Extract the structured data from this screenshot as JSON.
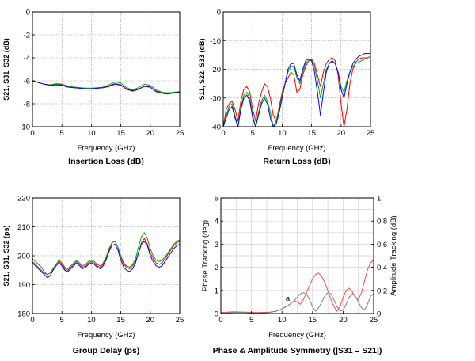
{
  "chart_data": [
    {
      "type": "line",
      "title": "Insertion Loss (dB)",
      "xlabel": "Frequency (GHz)",
      "ylabel": "S21, S31, S32 (dB)",
      "xlim": [
        0,
        25
      ],
      "ylim": [
        -10,
        0
      ],
      "xticks": [
        0,
        5,
        10,
        15,
        20,
        25
      ],
      "yticks": [
        0,
        -2,
        -4,
        -6,
        -8,
        -10
      ],
      "grid": true,
      "series": [
        {
          "color": "#ff0000",
          "x": [
            0,
            1,
            2,
            3,
            4,
            5,
            6,
            7,
            8,
            9,
            10,
            11,
            12,
            13,
            14,
            15,
            16,
            17,
            18,
            19,
            20,
            21,
            22,
            23,
            24,
            25
          ],
          "y": [
            -6.0,
            -6.15,
            -6.3,
            -6.35,
            -6.25,
            -6.3,
            -6.45,
            -6.55,
            -6.6,
            -6.65,
            -6.65,
            -6.65,
            -6.6,
            -6.5,
            -6.3,
            -6.4,
            -6.7,
            -6.85,
            -6.7,
            -6.5,
            -6.55,
            -6.9,
            -7.05,
            -7.1,
            -7.0,
            -6.95
          ]
        },
        {
          "color": "#00aa00",
          "x": [
            0,
            1,
            2,
            3,
            4,
            5,
            6,
            7,
            8,
            9,
            10,
            11,
            12,
            13,
            14,
            15,
            16,
            17,
            18,
            19,
            20,
            21,
            22,
            23,
            24,
            25
          ],
          "y": [
            -6.0,
            -6.15,
            -6.3,
            -6.35,
            -6.3,
            -6.35,
            -6.5,
            -6.55,
            -6.6,
            -6.65,
            -6.65,
            -6.6,
            -6.55,
            -6.35,
            -6.1,
            -6.2,
            -6.6,
            -6.8,
            -6.6,
            -6.3,
            -6.4,
            -6.8,
            -7.0,
            -7.05,
            -7.0,
            -6.95
          ]
        },
        {
          "color": "#0000ff",
          "x": [
            0,
            1,
            2,
            3,
            4,
            5,
            6,
            7,
            8,
            9,
            10,
            11,
            12,
            13,
            14,
            15,
            16,
            17,
            18,
            19,
            20,
            21,
            22,
            23,
            24,
            25
          ],
          "y": [
            -6.0,
            -6.15,
            -6.3,
            -6.4,
            -6.35,
            -6.4,
            -6.55,
            -6.6,
            -6.65,
            -6.7,
            -6.7,
            -6.65,
            -6.6,
            -6.45,
            -6.25,
            -6.35,
            -6.75,
            -6.9,
            -6.75,
            -6.45,
            -6.55,
            -6.95,
            -7.1,
            -7.15,
            -7.05,
            -7.0
          ]
        }
      ]
    },
    {
      "type": "line",
      "title": "Return Loss (dB)",
      "xlabel": "Frequency (GHz)",
      "ylabel": "S11, S22, S33 (dB)",
      "xlim": [
        0,
        25
      ],
      "ylim": [
        -40,
        0
      ],
      "xticks": [
        0,
        5,
        10,
        15,
        20,
        25
      ],
      "yticks": [
        0,
        -10,
        -20,
        -30,
        -40
      ],
      "grid": true,
      "series": [
        {
          "color": "#ff0000",
          "x": [
            0,
            0.5,
            1,
            1.5,
            2,
            2.5,
            3,
            3.5,
            4,
            4.5,
            5,
            5.5,
            6,
            6.5,
            7,
            7.5,
            8,
            8.5,
            9,
            9.5,
            10,
            10.5,
            11,
            11.5,
            12,
            12.5,
            13,
            13.5,
            14,
            14.5,
            15,
            15.5,
            16,
            16.5,
            17,
            17.5,
            18,
            18.5,
            19,
            19.5,
            20,
            20.5,
            21,
            21.5,
            22,
            22.5,
            23,
            23.5,
            24,
            24.5,
            25
          ],
          "y": [
            -40,
            -34,
            -32,
            -31,
            -34,
            -38,
            -31,
            -27,
            -26,
            -28,
            -34,
            -38,
            -32,
            -28,
            -25,
            -26,
            -30,
            -36,
            -38,
            -33,
            -28,
            -25,
            -23,
            -21,
            -22,
            -28,
            -27,
            -22,
            -19,
            -17,
            -16.5,
            -18,
            -22,
            -26,
            -21,
            -18,
            -16.5,
            -16,
            -17,
            -22,
            -32,
            -40,
            -34,
            -25,
            -20,
            -17.5,
            -16.5,
            -16,
            -16,
            -16,
            -15.5
          ]
        },
        {
          "color": "#00aa00",
          "x": [
            0,
            0.5,
            1,
            1.5,
            2,
            2.5,
            3,
            3.5,
            4,
            4.5,
            5,
            5.5,
            6,
            6.5,
            7,
            7.5,
            8,
            8.5,
            9,
            9.5,
            10,
            10.5,
            11,
            11.5,
            12,
            12.5,
            13,
            13.5,
            14,
            14.5,
            15,
            15.5,
            16,
            16.5,
            17,
            17.5,
            18,
            18.5,
            19,
            19.5,
            20,
            20.5,
            21,
            21.5,
            22,
            22.5,
            23,
            23.5,
            24,
            24.5,
            25
          ],
          "y": [
            -40,
            -36,
            -33,
            -32,
            -36,
            -40,
            -33,
            -29,
            -28,
            -30,
            -36,
            -40,
            -35,
            -31,
            -29,
            -31,
            -35,
            -40,
            -38,
            -34,
            -29,
            -25,
            -21,
            -19,
            -19,
            -23,
            -25,
            -21,
            -18,
            -17,
            -17,
            -19,
            -24,
            -30,
            -25,
            -20,
            -18,
            -17.5,
            -18,
            -21,
            -26,
            -28,
            -24,
            -21,
            -19,
            -18,
            -17.5,
            -17,
            -16.5,
            -16,
            -15.5
          ]
        },
        {
          "color": "#0000ff",
          "x": [
            0,
            0.5,
            1,
            1.5,
            2,
            2.5,
            3,
            3.5,
            4,
            4.5,
            5,
            5.5,
            6,
            6.5,
            7,
            7.5,
            8,
            8.5,
            9,
            9.5,
            10,
            10.5,
            11,
            11.5,
            12,
            12.5,
            13,
            13.5,
            14,
            14.5,
            15,
            15.5,
            16,
            16.5,
            17,
            17.5,
            18,
            18.5,
            19,
            19.5,
            20,
            20.5,
            21,
            21.5,
            22,
            22.5,
            23,
            23.5,
            24,
            24.5,
            25
          ],
          "y": [
            -40,
            -37,
            -34,
            -33,
            -37,
            -40,
            -34,
            -30,
            -29,
            -31,
            -37,
            -40,
            -36,
            -32,
            -30,
            -32,
            -37,
            -40,
            -39,
            -35,
            -30,
            -25,
            -20,
            -18,
            -18,
            -22,
            -24,
            -20,
            -17,
            -16.5,
            -17,
            -21,
            -28,
            -36,
            -28,
            -21,
            -18,
            -17,
            -18,
            -21,
            -27,
            -30,
            -25,
            -21,
            -18,
            -16.5,
            -15.5,
            -15,
            -14.5,
            -14.5,
            -14.5
          ]
        }
      ]
    },
    {
      "type": "line",
      "title": "Group Delay (ps)",
      "xlabel": "Frequency (GHz)",
      "ylabel": "S21, S31, S32 (ps)",
      "xlim": [
        0,
        25
      ],
      "ylim": [
        180,
        220
      ],
      "xticks": [
        0,
        5,
        10,
        15,
        20,
        25
      ],
      "yticks": [
        220,
        210,
        200,
        190,
        180
      ],
      "grid": true,
      "series": [
        {
          "color": "#ff0000",
          "x": [
            0,
            0.5,
            1,
            1.5,
            2,
            2.5,
            3,
            3.5,
            4,
            4.5,
            5,
            5.5,
            6,
            6.5,
            7,
            7.5,
            8,
            8.5,
            9,
            9.5,
            10,
            10.5,
            11,
            11.5,
            12,
            12.5,
            13,
            13.5,
            14,
            14.5,
            15,
            15.5,
            16,
            16.5,
            17,
            17.5,
            18,
            18.5,
            19,
            19.5,
            20,
            20.5,
            21,
            21.5,
            22,
            22.5,
            23,
            23.5,
            24,
            24.5,
            25
          ],
          "y": [
            198,
            197,
            196,
            195,
            194,
            193.5,
            194,
            195.5,
            197,
            198,
            197,
            195.5,
            195,
            196,
            197,
            198,
            197,
            196,
            196.5,
            197.5,
            198,
            197.5,
            196.5,
            196,
            197,
            199,
            202,
            204.5,
            205,
            203,
            199.5,
            197,
            196,
            195.5,
            196.5,
            198,
            201,
            204.5,
            206,
            204,
            201,
            199,
            197.5,
            197,
            197.5,
            199,
            200.5,
            202,
            203.5,
            204.5,
            205
          ]
        },
        {
          "color": "#00aa00",
          "x": [
            0,
            0.5,
            1,
            1.5,
            2,
            2.5,
            3,
            3.5,
            4,
            4.5,
            5,
            5.5,
            6,
            6.5,
            7,
            7.5,
            8,
            8.5,
            9,
            9.5,
            10,
            10.5,
            11,
            11.5,
            12,
            12.5,
            13,
            13.5,
            14,
            14.5,
            15,
            15.5,
            16,
            16.5,
            17,
            17.5,
            18,
            18.5,
            19,
            19.5,
            20,
            20.5,
            21,
            21.5,
            22,
            22.5,
            23,
            23.5,
            24,
            24.5,
            25
          ],
          "y": [
            199,
            198,
            197,
            196,
            194.5,
            193.5,
            194,
            195.5,
            197,
            198.5,
            197.5,
            196,
            195.5,
            196.5,
            197.5,
            198.5,
            197.5,
            196.5,
            197,
            198,
            198.5,
            198,
            197,
            196.5,
            197.5,
            199.5,
            202.5,
            204.5,
            205,
            203,
            200,
            197.5,
            196.5,
            196,
            197,
            199,
            203,
            206.5,
            208,
            206,
            202.5,
            200,
            198.5,
            198,
            198.5,
            199.5,
            201,
            202.5,
            204,
            205,
            205.5
          ]
        },
        {
          "color": "#0000ff",
          "x": [
            0,
            0.5,
            1,
            1.5,
            2,
            2.5,
            3,
            3.5,
            4,
            4.5,
            5,
            5.5,
            6,
            6.5,
            7,
            7.5,
            8,
            8.5,
            9,
            9.5,
            10,
            10.5,
            11,
            11.5,
            12,
            12.5,
            13,
            13.5,
            14,
            14.5,
            15,
            15.5,
            16,
            16.5,
            17,
            17.5,
            18,
            18.5,
            19,
            19.5,
            20,
            20.5,
            21,
            21.5,
            22,
            22.5,
            23,
            23.5,
            24,
            24.5,
            25
          ],
          "y": [
            197.5,
            196.5,
            195.5,
            194.5,
            193.5,
            192.5,
            193,
            195,
            196.5,
            197.5,
            196.5,
            195,
            194.5,
            195.5,
            196.5,
            197.5,
            196.5,
            195.5,
            196,
            197,
            197.5,
            197,
            196,
            195.5,
            196.5,
            198.5,
            201.5,
            203.5,
            204,
            202,
            198.5,
            196,
            195,
            194.5,
            195.5,
            197.5,
            201,
            204,
            205,
            203.5,
            200,
            198,
            196.5,
            196,
            196.5,
            198,
            199.5,
            201,
            202.5,
            203.5,
            204
          ]
        }
      ]
    },
    {
      "type": "line",
      "title": "Phase & Amplitude Symmetry (|S31 – S21|)",
      "xlabel": "Frequency (GHz)",
      "ylabel": "Phase Tracking (deg)",
      "y2label": "Amplitude Tracking (dB)",
      "xlim": [
        0,
        25
      ],
      "ylim": [
        0,
        5
      ],
      "y2lim": [
        0,
        1
      ],
      "xticks": [
        0,
        5,
        10,
        15,
        20,
        25
      ],
      "yticks": [
        0,
        1,
        2,
        3,
        4,
        5
      ],
      "y2ticks": [
        0,
        0.2,
        0.4,
        0.6,
        0.8,
        1
      ],
      "grid": true,
      "annotation": "a",
      "series": [
        {
          "color": "#ff4d4d",
          "axis": "left",
          "x": [
            0,
            1,
            2,
            3,
            4,
            5,
            6,
            7,
            8,
            9,
            10,
            11,
            11.5,
            12,
            12.5,
            13,
            13.5,
            14,
            14.5,
            15,
            15.5,
            16,
            16.5,
            17,
            17.5,
            18,
            18.5,
            19,
            19.5,
            20,
            20.5,
            21,
            21.5,
            22,
            22.5,
            23,
            23.5,
            24,
            24.5,
            25
          ],
          "y": [
            0.05,
            0.06,
            0.08,
            0.07,
            0.06,
            0.05,
            0.04,
            0.05,
            0.06,
            0.1,
            0.2,
            0.35,
            0.45,
            0.55,
            0.5,
            0.4,
            0.6,
            0.9,
            1.2,
            1.5,
            1.7,
            1.75,
            1.6,
            1.35,
            1.0,
            0.6,
            0.3,
            0.1,
            0.3,
            0.7,
            1.0,
            1.1,
            0.95,
            0.7,
            0.6,
            0.9,
            1.4,
            1.9,
            2.2,
            2.3
          ]
        },
        {
          "color": "#7f7f7f",
          "axis": "right",
          "x": [
            0,
            1,
            2,
            3,
            4,
            5,
            6,
            7,
            8,
            9,
            10,
            11,
            11.5,
            12,
            12.5,
            13,
            13.5,
            14,
            14.5,
            15,
            15.5,
            16,
            16.5,
            17,
            17.5,
            18,
            18.5,
            19,
            19.5,
            20,
            20.5,
            21,
            21.5,
            22,
            22.5,
            23,
            23.5,
            24,
            24.5,
            25
          ],
          "y": [
            0.005,
            0.006,
            0.008,
            0.01,
            0.008,
            0.006,
            0.005,
            0.006,
            0.01,
            0.02,
            0.04,
            0.07,
            0.09,
            0.11,
            0.14,
            0.17,
            0.18,
            0.17,
            0.12,
            0.06,
            0.02,
            0.05,
            0.1,
            0.15,
            0.18,
            0.17,
            0.12,
            0.06,
            0.02,
            0.03,
            0.08,
            0.14,
            0.17,
            0.15,
            0.1,
            0.05,
            0.03,
            0.08,
            0.15,
            0.17
          ]
        }
      ]
    }
  ]
}
